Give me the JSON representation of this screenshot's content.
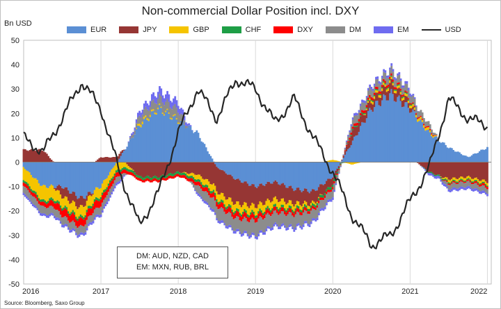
{
  "chart_data": {
    "type": "area",
    "title": "Non-commercial Dollar Position incl. DXY",
    "ylabel": "Bn USD",
    "source": "Source: Bloomberg, Saxo Group",
    "ylim": [
      -50,
      50
    ],
    "yticks": [
      -50,
      -40,
      -30,
      -20,
      -10,
      0,
      10,
      20,
      30,
      40,
      50
    ],
    "xlim": [
      2016.0,
      2022.05
    ],
    "xticks": [
      "2016",
      "2017",
      "2018",
      "2019",
      "2020",
      "2021",
      "2022"
    ],
    "grid": "vertical",
    "legend_position": "top",
    "colors": {
      "EUR": "#5b8fd4",
      "JPY": "#963634",
      "GBP": "#f5c400",
      "CHF": "#1e9e46",
      "DXY": "#ff0000",
      "DM": "#8c8c8c",
      "EM": "#6f6cf0",
      "USD": "#262626"
    },
    "x": [
      2016.0,
      2016.25,
      2016.5,
      2016.75,
      2017.0,
      2017.25,
      2017.5,
      2017.75,
      2018.0,
      2018.25,
      2018.5,
      2018.75,
      2019.0,
      2019.25,
      2019.5,
      2019.75,
      2020.0,
      2020.25,
      2020.5,
      2020.75,
      2021.0,
      2021.25,
      2021.5,
      2021.75,
      2022.0
    ],
    "series": [
      {
        "name": "EUR",
        "values": [
          -2,
          -10,
          -10,
          -15,
          -10,
          2,
          15,
          22,
          17,
          12,
          -2,
          -7,
          -10,
          -8,
          -11,
          -12,
          -6,
          8,
          22,
          28,
          22,
          12,
          6,
          2,
          6
        ]
      },
      {
        "name": "JPY",
        "values": [
          5,
          5,
          -4,
          -4,
          2,
          2,
          -6,
          -6,
          -4,
          -5,
          -10,
          -10,
          -8,
          -7,
          -6,
          -5,
          -3,
          4,
          3,
          4,
          2,
          -4,
          -7,
          -6,
          -8
        ]
      },
      {
        "name": "GBP",
        "values": [
          -5,
          -6,
          -4,
          -4,
          -4,
          -3,
          1,
          0.5,
          0.5,
          -2,
          -3,
          -3,
          -3,
          -3,
          -2,
          -1,
          1,
          -1,
          1,
          1,
          1,
          1,
          -1,
          -1,
          -1
        ]
      },
      {
        "name": "CHF",
        "values": [
          -1,
          -1,
          -1,
          -1,
          -1,
          -1,
          -1,
          -1,
          -1,
          -1,
          -1,
          -1,
          -1,
          -1,
          -1,
          -1,
          -1,
          0.5,
          0.5,
          0.5,
          0.5,
          -0.5,
          -0.5,
          -0.5,
          -0.5
        ]
      },
      {
        "name": "DXY",
        "values": [
          -1.5,
          -1.5,
          -3,
          -3,
          -3,
          -1.5,
          -1,
          -1,
          -1,
          -1.5,
          -2,
          -2,
          -2,
          -1.5,
          -1.5,
          -1,
          -1,
          1,
          1,
          1,
          0.5,
          0.5,
          -0.5,
          -0.5,
          -1
        ]
      },
      {
        "name": "DM",
        "values": [
          -3,
          -3,
          -3,
          -3,
          -3,
          -2,
          3,
          4,
          4,
          -3,
          -5,
          -5,
          -6,
          -5,
          -5,
          -4,
          -3,
          3,
          3,
          3,
          3,
          2,
          -2,
          -2,
          -2
        ]
      },
      {
        "name": "EM",
        "values": [
          -1,
          -1,
          -1,
          -1,
          -1,
          -1,
          2,
          3,
          3,
          -1,
          -1,
          -1,
          -1,
          -1,
          -1,
          -1,
          -1,
          1,
          1,
          1,
          1,
          -1,
          -1,
          -1,
          -1
        ]
      },
      {
        "name": "USD",
        "values": [
          10,
          4,
          18,
          33,
          22,
          -5,
          -26,
          -12,
          12,
          30,
          18,
          34,
          30,
          16,
          26,
          10,
          -4,
          -22,
          -34,
          -30,
          -16,
          -2,
          26,
          18,
          15
        ]
      }
    ]
  },
  "legend_items": [
    "EUR",
    "JPY",
    "GBP",
    "CHF",
    "DXY",
    "DM",
    "EM",
    "USD"
  ],
  "note": {
    "line1": "DM: AUD, NZD, CAD",
    "line2": "EM: MXN, RUB, BRL"
  }
}
